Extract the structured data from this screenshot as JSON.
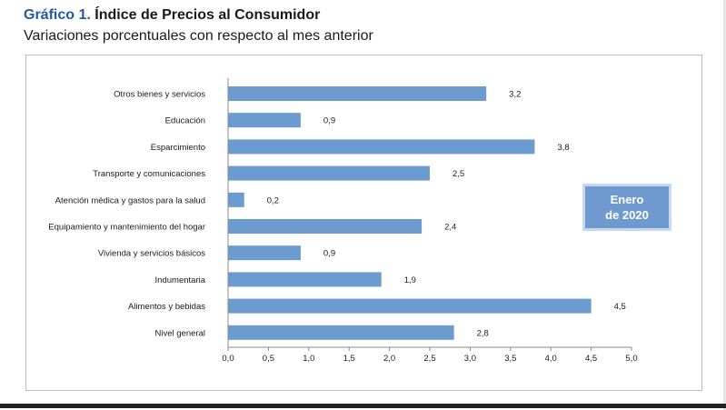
{
  "header": {
    "title_prefix": "Gráfico 1.",
    "title_main": "Índice de Precios al Consumidor",
    "subtitle": "Variaciones porcentuales con respecto al mes anterior"
  },
  "badge": {
    "line1": "Enero",
    "line2": "de 2020"
  },
  "colors": {
    "bar": "#6b9bcf",
    "title_accent": "#1f5aa6"
  },
  "chart_data": {
    "type": "bar",
    "orientation": "horizontal",
    "categories": [
      "Otros bienes y servicios",
      "Educación",
      "Esparcimiento",
      "Transporte y comunicaciones",
      "Atención médica y gastos para la salud",
      "Equipamiento y  mantenimiento del hogar",
      "Vivienda y servicios básicos",
      "Indumentaria",
      "Alimentos y bebidas",
      "Nivel  general"
    ],
    "values": [
      3.2,
      0.9,
      3.8,
      2.5,
      0.2,
      2.4,
      0.9,
      1.9,
      4.5,
      2.8
    ],
    "value_labels": [
      "3,2",
      "0,9",
      "3,8",
      "2,5",
      "0,2",
      "2,4",
      "0,9",
      "1,9",
      "4,5",
      "2,8"
    ],
    "xlim": [
      0,
      5
    ],
    "x_ticks": [
      0,
      0.5,
      1,
      1.5,
      2,
      2.5,
      3,
      3.5,
      4,
      4.5,
      5
    ],
    "x_tick_labels": [
      "0,0",
      "0,5",
      "1,0",
      "1,5",
      "2,0",
      "2,5",
      "3,0",
      "3,5",
      "4,0",
      "4,5",
      "5,0"
    ],
    "grid": false,
    "legend": "none"
  }
}
